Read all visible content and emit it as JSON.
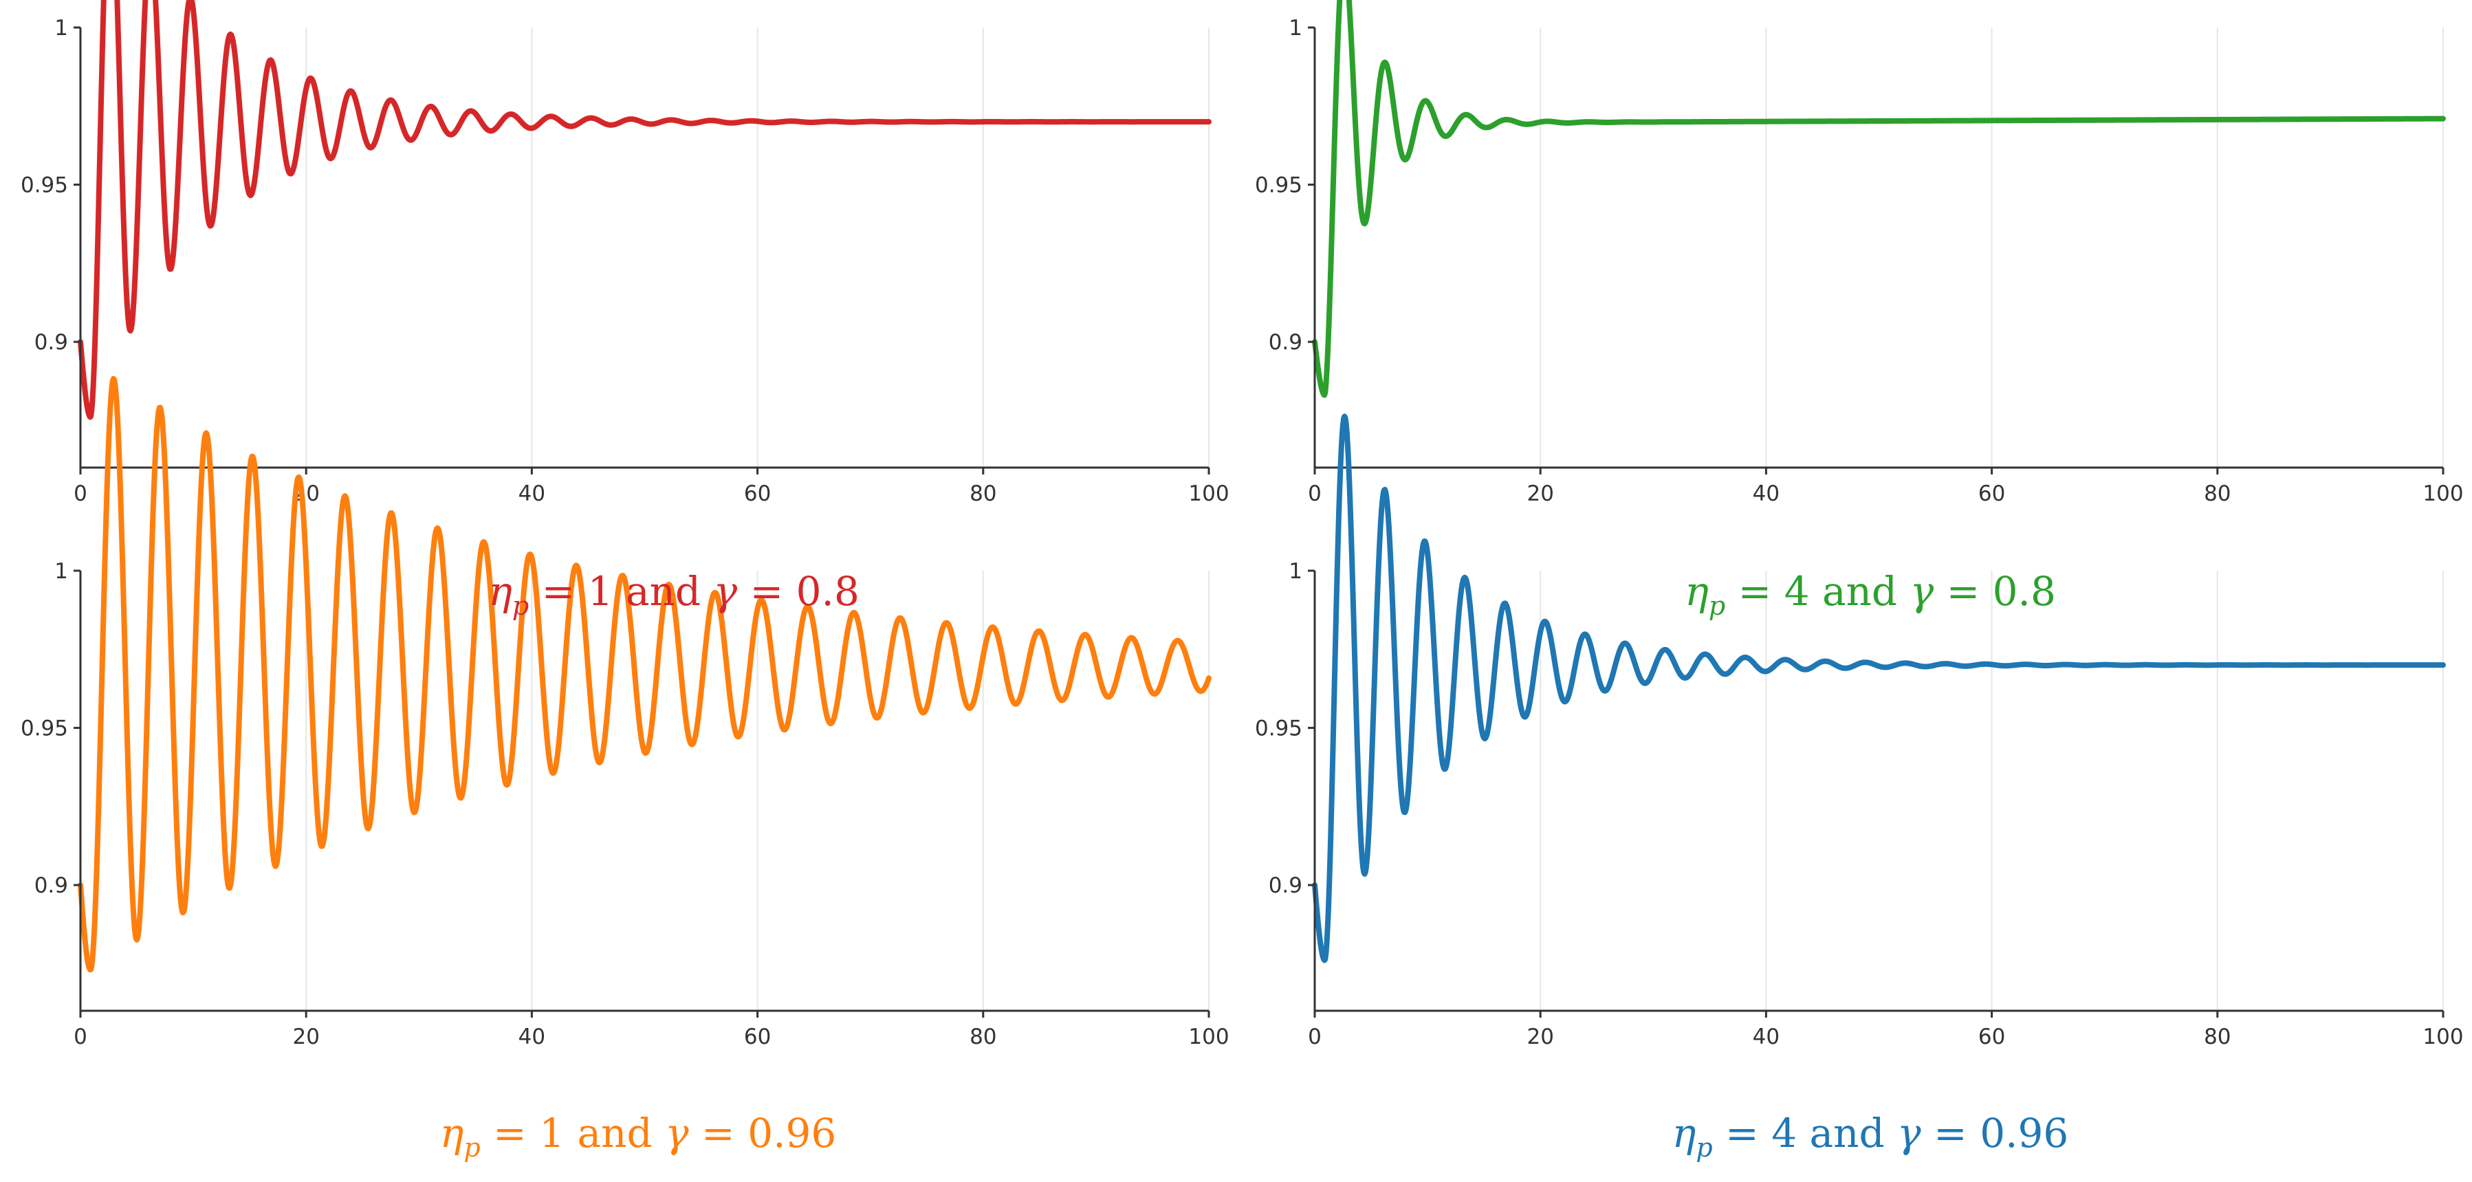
{
  "chart_data": [
    {
      "type": "line",
      "title": "",
      "caption": {
        "symbol": "η",
        "sub": "p",
        "eq1": " = 1 and ",
        "gamma": "γ",
        "eq2": " = 0.8"
      },
      "xlim": [
        0,
        100
      ],
      "ylim": [
        0.86,
        1.0
      ],
      "xticks": [
        0,
        20,
        40,
        60,
        80,
        100
      ],
      "yticks": [
        1,
        0.95,
        0.9
      ],
      "ytick_labels": [
        "1",
        "0.95",
        "0.9"
      ],
      "grid": "vertical",
      "series": [
        {
          "color": "#d62728",
          "x0": 0,
          "y0": 0.9,
          "ymin": 0.876,
          "yss": 0.97,
          "amp": 0.064,
          "decay": 0.098,
          "period": 3.55,
          "phase": -0.44,
          "tend": 100
        }
      ]
    },
    {
      "type": "line",
      "title": "",
      "caption": {
        "symbol": "η",
        "sub": "p",
        "eq1": " = 4 and ",
        "gamma": "γ",
        "eq2": " = 0.8"
      },
      "xlim": [
        0,
        100
      ],
      "ylim": [
        0.86,
        1.0
      ],
      "xticks": [
        0,
        20,
        40,
        60,
        80,
        100
      ],
      "yticks": [
        1,
        0.95,
        0.9
      ],
      "ytick_labels": [
        "1",
        "0.95",
        "0.9"
      ],
      "grid": "vertical",
      "series": [
        {
          "color": "#2ca02c",
          "x0": 0,
          "y0": 0.9,
          "ymin": 0.883,
          "yss": 0.9695,
          "amp": 0.045,
          "decay": 0.28,
          "period": 3.6,
          "phase": -0.42,
          "tend": 100,
          "drift": 0.0015
        }
      ]
    },
    {
      "type": "line",
      "title": "",
      "caption": {
        "symbol": "η",
        "sub": "p",
        "eq1": " = 1 and ",
        "gamma": "γ",
        "eq2": " = 0.96"
      },
      "xlim": [
        0,
        100
      ],
      "ylim": [
        0.86,
        1.0
      ],
      "xticks": [
        0,
        20,
        40,
        60,
        80,
        100
      ],
      "yticks": [
        1,
        0.95,
        0.9
      ],
      "ytick_labels": [
        "1",
        "0.95",
        "0.9"
      ],
      "grid": "vertical",
      "series": [
        {
          "color": "#ff7f0e",
          "x0": 0,
          "y0": 0.9,
          "ymin": 0.873,
          "yss": 0.9695,
          "amp": 0.075,
          "decay": 0.0255,
          "period": 4.1,
          "phase": -0.4,
          "tend": 100
        }
      ]
    },
    {
      "type": "line",
      "title": "",
      "caption": {
        "symbol": "η",
        "sub": "p",
        "eq1": " = 4 and ",
        "gamma": "γ",
        "eq2": " = 0.96"
      },
      "xlim": [
        0,
        100
      ],
      "ylim": [
        0.86,
        1.0
      ],
      "xticks": [
        0,
        20,
        40,
        60,
        80,
        100
      ],
      "yticks": [
        1,
        0.95,
        0.9
      ],
      "ytick_labels": [
        "1",
        "0.95",
        "0.9"
      ],
      "grid": "vertical",
      "series": [
        {
          "color": "#1f77b4",
          "x0": 0,
          "y0": 0.9,
          "ymin": 0.876,
          "yss": 0.97,
          "amp": 0.063,
          "decay": 0.098,
          "period": 3.55,
          "phase": -0.44,
          "tend": 100
        }
      ]
    }
  ]
}
